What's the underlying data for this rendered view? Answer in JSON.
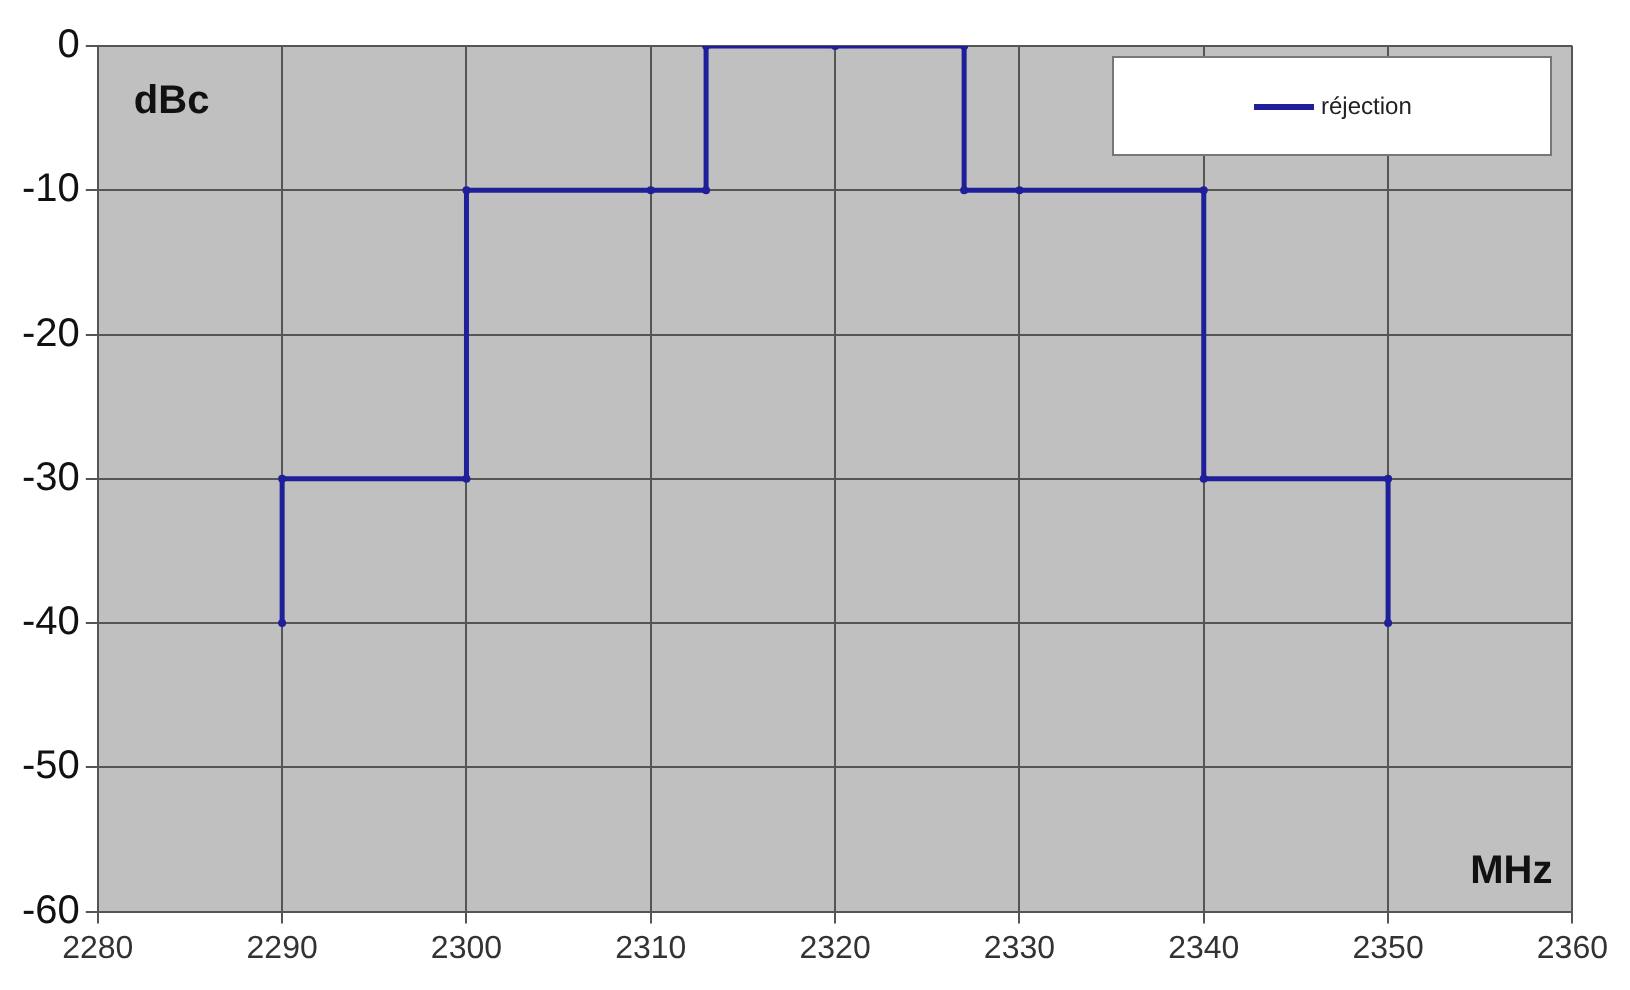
{
  "chart_data": {
    "type": "line",
    "xlabel": "MHz",
    "ylabel": "dBc",
    "x": [
      2290,
      2290,
      2300,
      2300,
      2310,
      2313,
      2313,
      2320,
      2327,
      2327,
      2330,
      2340,
      2340,
      2350,
      2350
    ],
    "series": [
      {
        "name": "réjection",
        "color": "#1f1f9a",
        "values": [
          -40,
          -30,
          -30,
          -10,
          -10,
          -10,
          0,
          0,
          0,
          -10,
          -10,
          -10,
          -30,
          -30,
          -40
        ]
      }
    ],
    "xlim": [
      2280,
      2360
    ],
    "xticks": [
      2280,
      2290,
      2300,
      2310,
      2320,
      2330,
      2340,
      2350,
      2360
    ],
    "ylim": [
      -60,
      0
    ],
    "yticks": [
      -60,
      -50,
      -40,
      -30,
      -20,
      -10,
      0
    ],
    "grid": true,
    "legend": "top right",
    "marker": "circle",
    "line_style": "solid"
  }
}
